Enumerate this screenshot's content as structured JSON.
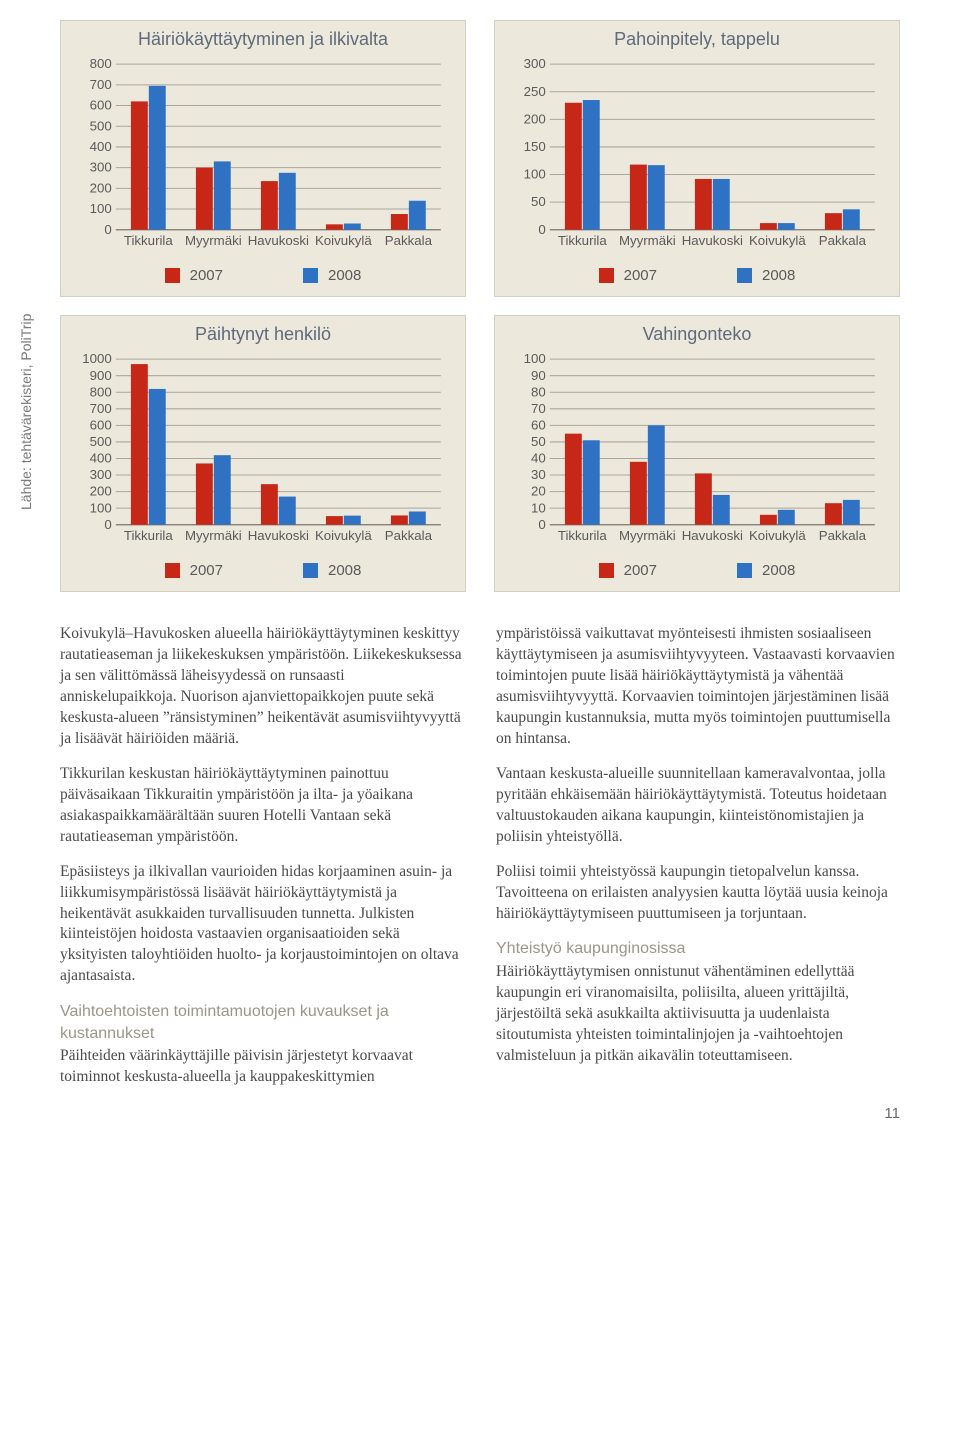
{
  "source_label": "Lähde: tehtävärekisteri, PoliTrip",
  "page_number": "11",
  "colors": {
    "series_2007": "#c62717",
    "series_2008": "#2f72c3",
    "panel_bg": "#ece8dc",
    "panel_border": "#d4cfbe",
    "grid": "#aaa69a",
    "title": "#5e6b7a"
  },
  "legend": {
    "s1": "2007",
    "s2": "2008"
  },
  "charts": [
    {
      "id": "c1",
      "title": "Häiriökäyttäytyminen ja ilkivalta",
      "ymax": 800,
      "ytick": 100,
      "categories": [
        "Tikkurila",
        "Myyrmäki",
        "Havukoski",
        "Koivukylä",
        "Pakkala"
      ],
      "v2007": [
        620,
        300,
        235,
        26,
        76
      ],
      "v2008": [
        695,
        330,
        275,
        30,
        140
      ]
    },
    {
      "id": "c2",
      "title": "Pahoinpitely, tappelu",
      "ymax": 300,
      "ytick": 50,
      "categories": [
        "Tikkurila",
        "Myyrmäki",
        "Havukoski",
        "Koivukylä",
        "Pakkala"
      ],
      "v2007": [
        230,
        118,
        92,
        12,
        30
      ],
      "v2008": [
        235,
        117,
        92,
        12,
        37
      ]
    },
    {
      "id": "c3",
      "title": "Päihtynyt henkilö",
      "ymax": 1000,
      "ytick": 100,
      "categories": [
        "Tikkurila",
        "Myyrmäki",
        "Havukoski",
        "Koivukylä",
        "Pakkala"
      ],
      "v2007": [
        970,
        370,
        245,
        52,
        56
      ],
      "v2008": [
        820,
        420,
        170,
        55,
        80
      ]
    },
    {
      "id": "c4",
      "title": "Vahingonteko",
      "ymax": 100,
      "ytick": 10,
      "categories": [
        "Tikkurila",
        "Myyrmäki",
        "Havukoski",
        "Koivukylä",
        "Pakkala"
      ],
      "v2007": [
        55,
        38,
        31,
        6,
        13
      ],
      "v2008": [
        51,
        60,
        18,
        9,
        15
      ]
    }
  ],
  "text": {
    "left": {
      "p1": "Koivukylä–Havukosken alueella häiriökäyttäytyminen keskittyy rautatieaseman ja liikekeskuksen ympäristöön. Liikekeskuksessa ja sen välittömässä läheisyydessä on runsaasti anniskelupaikkoja. Nuorison ajanviettopaikkojen puute sekä keskusta-alueen ”ränsistyminen” heikentävät asumisviihtyvyyttä ja lisäävät häiriöiden määriä.",
      "p2": "Tikkurilan keskustan häiriökäyttäytyminen painottuu päiväsaikaan Tikkuraitin ympäristöön ja ilta- ja yöaikana asiakaspaikkamäärältään suuren Hotelli Vantaan sekä rautatieaseman ympäristöön.",
      "p3": "Epäsiisteys ja ilkivallan vaurioiden hidas korjaaminen asuin- ja liikkumisympäristössä lisäävät häiriökäyttäytymistä ja heikentävät asukkaiden turvallisuuden tunnetta. Julkisten kiinteistöjen hoidosta vastaavien organisaatioiden sekä yksityisten taloyhtiöiden huolto- ja korjaustoimintojen on oltava ajantasaista.",
      "h1": "Vaihtoehtoisten toimintamuotojen kuvaukset ja kustannukset",
      "p4": "Päihteiden väärinkäyttäjille päivisin järjestetyt korvaavat toiminnot keskusta-alueella ja kauppakeskittymien"
    },
    "right": {
      "p1": "ympäristöissä vaikuttavat myönteisesti ihmisten sosiaaliseen käyttäytymiseen ja asumisviihtyvyyteen. Vastaavasti korvaavien toimintojen puute lisää häiriökäyttäytymistä ja vähentää asumisviihtyvyyttä. Korvaavien toimintojen järjestäminen lisää kaupungin kustannuksia, mutta myös toimintojen puuttumisella on hintansa.",
      "p2": "Vantaan keskusta-alueille suunnitellaan kameravalvontaa, jolla pyritään ehkäisemään häiriökäyttäytymistä. Toteutus hoidetaan valtuustokauden aikana kaupungin, kiinteistönomistajien ja poliisin yhteistyöllä.",
      "p3": "Poliisi toimii yhteistyössä kaupungin tietopalvelun kanssa. Tavoitteena on erilaisten analyysien kautta löytää uusia keinoja häiriökäyttäytymiseen puuttumiseen ja torjuntaan.",
      "h1": "Yhteistyö kaupunginosissa",
      "p4": "Häiriökäyttäytymisen onnistunut vähentäminen edellyttää kaupungin eri viranomaisilta, poliisilta, alueen yrittäjiltä, järjestöiltä sekä asukkailta aktiivisuutta ja uudenlaista sitoutumista yhteisten toimintalinjojen ja -vaihtoehtojen valmisteluun ja pitkän aikavälin toteuttamiseen."
    }
  }
}
